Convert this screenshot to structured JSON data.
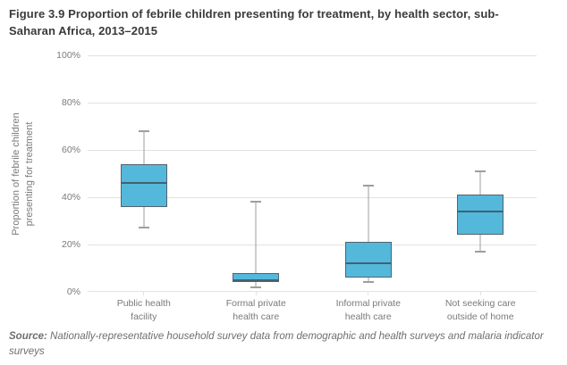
{
  "figure": {
    "title": "Figure 3.9 Proportion of febrile children presenting for treatment, by health sector, sub-Saharan Africa, 2013–2015",
    "source_label": "Source:",
    "source_text": " Nationally-representative household survey data from demographic and health surveys and malaria indicator surveys"
  },
  "chart_data": {
    "type": "box",
    "title": "Figure 3.9 Proportion of febrile children presenting for treatment, by health sector, sub-Saharan Africa, 2013–2015",
    "xlabel": "",
    "ylabel": "Proportion of febrile children presenting for treatment",
    "ylabel_lines": [
      "Proportion of febrile children",
      "presenting for treatment"
    ],
    "ylim": [
      0,
      100
    ],
    "grid": true,
    "legend": "none",
    "yticks": [
      {
        "value": 0,
        "label": "0%"
      },
      {
        "value": 20,
        "label": "20%"
      },
      {
        "value": 40,
        "label": "40%"
      },
      {
        "value": 60,
        "label": "60%"
      },
      {
        "value": 80,
        "label": "80%"
      },
      {
        "value": 100,
        "label": "100%"
      }
    ],
    "categories": [
      "Public health\nfacility",
      "Formal private\nhealth care",
      "Informal private\nhealth care",
      "Not seeking care\noutside of home"
    ],
    "series": [
      {
        "name": "Public health facility",
        "min": 27,
        "q1": 36,
        "median": 46,
        "q3": 54,
        "max": 68
      },
      {
        "name": "Formal private health care",
        "min": 2,
        "q1": 4,
        "median": 5,
        "q3": 8,
        "max": 38
      },
      {
        "name": "Informal private health care",
        "min": 4,
        "q1": 6,
        "median": 12,
        "q3": 21,
        "max": 45
      },
      {
        "name": "Not seeking care outside of home",
        "min": 17,
        "q1": 24,
        "median": 34,
        "q3": 41,
        "max": 51
      }
    ],
    "unit": "%",
    "colors": {
      "box_fill": "#54b8db",
      "box_border": "#55626d",
      "median": "#44616f",
      "whisker": "#9e9e9e",
      "gridline": "#e2e2e2",
      "title_text": "#3a3a3a",
      "axis_text": "#7a7a7a",
      "source_text": "#6e6e6e"
    }
  }
}
